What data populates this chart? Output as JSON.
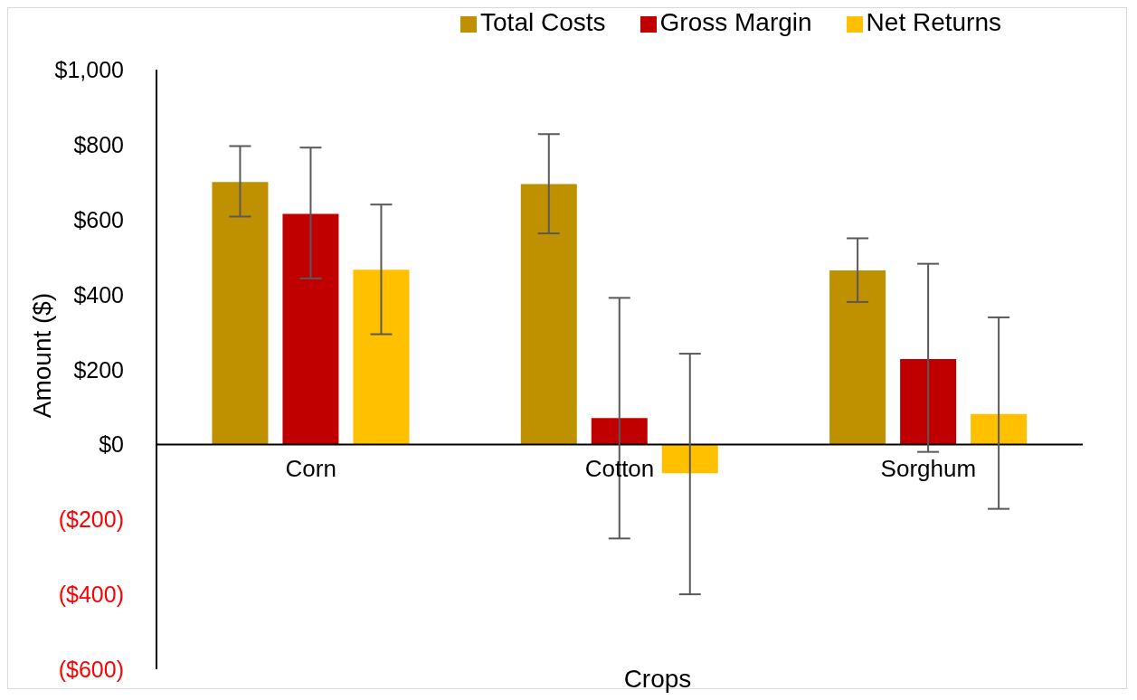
{
  "chart_data": {
    "type": "bar",
    "xlabel": "Crops",
    "ylabel": "Amount ($)",
    "categories": [
      "Corn",
      "Cotton",
      "Sorghum"
    ],
    "series": [
      {
        "name": "Total Costs",
        "color": "#bf9000",
        "values": [
          700,
          695,
          464
        ],
        "errors": [
          [
            608,
            796
          ],
          [
            563,
            828
          ],
          [
            380,
            550
          ]
        ]
      },
      {
        "name": "Gross Margin",
        "color": "#c00000",
        "values": [
          615,
          70,
          228
        ],
        "errors": [
          [
            443,
            792
          ],
          [
            -251,
            391
          ],
          [
            -20,
            482
          ]
        ]
      },
      {
        "name": "Net Returns",
        "color": "#ffc000",
        "values": [
          466,
          -77,
          81
        ],
        "errors": [
          [
            294,
            640
          ],
          [
            -400,
            242
          ],
          [
            -172,
            339
          ]
        ]
      }
    ],
    "ylim": [
      -600,
      1000
    ],
    "yticks": [
      {
        "value": -600,
        "label": "($600)"
      },
      {
        "value": -400,
        "label": "($400)"
      },
      {
        "value": -200,
        "label": "($200)"
      },
      {
        "value": 0,
        "label": "$0"
      },
      {
        "value": 200,
        "label": "$200"
      },
      {
        "value": 400,
        "label": "$400"
      },
      {
        "value": 600,
        "label": "$600"
      },
      {
        "value": 800,
        "label": "$800"
      },
      {
        "value": 1000,
        "label": "$1,000"
      }
    ],
    "grid": false,
    "legend": "top right"
  }
}
